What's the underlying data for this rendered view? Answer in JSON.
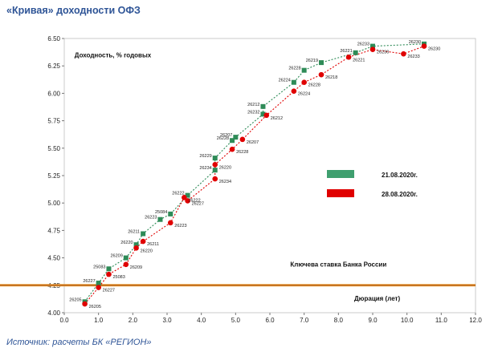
{
  "title": "«Кривая» доходности ОФЗ",
  "source": "Источник:  расчеты БК «РЕГИОН»",
  "chart_data": {
    "type": "scatter",
    "ylabel": "Доходность, % годовых",
    "xlabel": "Дюрация (лет)",
    "xlim": [
      0,
      12
    ],
    "ylim": [
      4.0,
      6.5
    ],
    "xticks": [
      "0.0",
      "1.0",
      "2.0",
      "3.0",
      "4.0",
      "5.0",
      "6.0",
      "7.0",
      "8.0",
      "9.0",
      "10.0",
      "11.0",
      "12.0"
    ],
    "yticks": [
      "4.00",
      "4.25",
      "4.50",
      "4.75",
      "5.00",
      "5.25",
      "5.50",
      "5.75",
      "6.00",
      "6.25",
      "6.50"
    ],
    "grid": false,
    "legend": "right",
    "key_rate": {
      "label": "Ключева ставка Банка России",
      "value": 4.25
    },
    "series": [
      {
        "name": "21.08.2020г.",
        "color": "#2e8b57",
        "marker": "square",
        "points": [
          {
            "label": "26205",
            "x": 0.6,
            "y": 4.1
          },
          {
            "label": "26227",
            "x": 1.0,
            "y": 4.27
          },
          {
            "label": "25083",
            "x": 1.3,
            "y": 4.4
          },
          {
            "label": "26209",
            "x": 1.8,
            "y": 4.5
          },
          {
            "label": "26220",
            "x": 2.1,
            "y": 4.62
          },
          {
            "label": "26211",
            "x": 2.3,
            "y": 4.72
          },
          {
            "label": "26223",
            "x": 2.8,
            "y": 4.85
          },
          {
            "label": "25084",
            "x": 3.1,
            "y": 4.9
          },
          {
            "label": "26222",
            "x": 3.6,
            "y": 5.07
          },
          {
            "label": "26234",
            "x": 4.4,
            "y": 5.3
          },
          {
            "label": "26229",
            "x": 4.4,
            "y": 5.41
          },
          {
            "label": "26228",
            "x": 4.9,
            "y": 5.57
          },
          {
            "label": "26207",
            "x": 5.0,
            "y": 5.6
          },
          {
            "label": "26232",
            "x": 5.8,
            "y": 5.81
          },
          {
            "label": "26212",
            "x": 5.8,
            "y": 5.88
          },
          {
            "label": "26224",
            "x": 6.7,
            "y": 6.1
          },
          {
            "label": "26228",
            "x": 7.0,
            "y": 6.21
          },
          {
            "label": "26219",
            "x": 7.5,
            "y": 6.28
          },
          {
            "label": "26221",
            "x": 8.5,
            "y": 6.37
          },
          {
            "label": "26233",
            "x": 9.0,
            "y": 6.43
          },
          {
            "label": "26230",
            "x": 10.5,
            "y": 6.45
          }
        ]
      },
      {
        "name": "28.08.2020г.",
        "color": "#e00000",
        "marker": "circle",
        "points": [
          {
            "label": "26205",
            "x": 0.6,
            "y": 4.08
          },
          {
            "label": "26227",
            "x": 1.0,
            "y": 4.23
          },
          {
            "label": "25083",
            "x": 1.3,
            "y": 4.35
          },
          {
            "label": "26209",
            "x": 1.8,
            "y": 4.44
          },
          {
            "label": "26220",
            "x": 2.1,
            "y": 4.59
          },
          {
            "label": "26211",
            "x": 2.3,
            "y": 4.65
          },
          {
            "label": "26223",
            "x": 3.1,
            "y": 4.82
          },
          {
            "label": "26222",
            "x": 3.5,
            "y": 5.05
          },
          {
            "label": "26227",
            "x": 3.6,
            "y": 5.02
          },
          {
            "label": "26234",
            "x": 4.4,
            "y": 5.22
          },
          {
            "label": "26220",
            "x": 4.4,
            "y": 5.35
          },
          {
            "label": "26228",
            "x": 4.9,
            "y": 5.49
          },
          {
            "label": "26207",
            "x": 5.2,
            "y": 5.58
          },
          {
            "label": "26212",
            "x": 5.9,
            "y": 5.8
          },
          {
            "label": "26224",
            "x": 6.7,
            "y": 6.02
          },
          {
            "label": "26228",
            "x": 7.0,
            "y": 6.1
          },
          {
            "label": "26218",
            "x": 7.5,
            "y": 6.17
          },
          {
            "label": "26221",
            "x": 8.3,
            "y": 6.33
          },
          {
            "label": "26230",
            "x": 9.0,
            "y": 6.4
          },
          {
            "label": "26233",
            "x": 9.9,
            "y": 6.36
          },
          {
            "label": "26230",
            "x": 10.5,
            "y": 6.43
          }
        ]
      }
    ]
  }
}
